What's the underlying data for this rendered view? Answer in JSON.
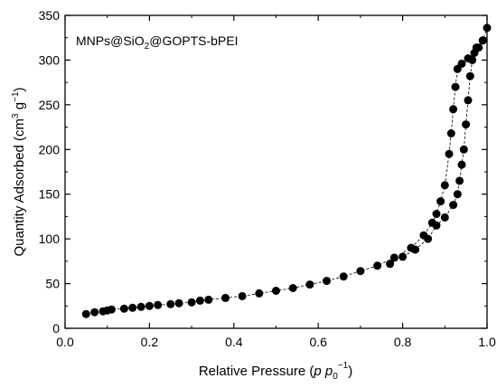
{
  "chart_data": {
    "type": "scatter",
    "title": "",
    "annotation": {
      "prefix": "MNPs@SiO",
      "sub1": "2",
      "suffix": "@GOPTS-bPEI"
    },
    "xlabel": {
      "text": "Relative Pressure (",
      "p": "p",
      "p0": "p",
      "p0_sub": "0",
      "sup": "−1",
      "close": ")"
    },
    "ylabel": {
      "text": "Quantity Adsorbed (cm",
      "sup1": "3",
      "mid": " g",
      "sup2": "−1",
      "close": ")"
    },
    "xlim": [
      0.0,
      1.0
    ],
    "ylim": [
      0,
      350
    ],
    "xticks": [
      0.0,
      0.2,
      0.4,
      0.6,
      0.8,
      1.0
    ],
    "xtick_labels": [
      "0.0",
      "0.2",
      "0.4",
      "0.6",
      "0.8",
      "1.0"
    ],
    "yticks": [
      0,
      50,
      100,
      150,
      200,
      250,
      300,
      350
    ],
    "ytick_labels": [
      "0",
      "50",
      "100",
      "150",
      "200",
      "250",
      "300",
      "350"
    ],
    "grid": false,
    "marker_color": "#000000",
    "series": [
      {
        "name": "",
        "points": [
          [
            0.05,
            16
          ],
          [
            0.07,
            18
          ],
          [
            0.09,
            19
          ],
          [
            0.1,
            20
          ],
          [
            0.11,
            21
          ],
          [
            0.14,
            22
          ],
          [
            0.16,
            23
          ],
          [
            0.18,
            24
          ],
          [
            0.2,
            25
          ],
          [
            0.22,
            26
          ],
          [
            0.25,
            27
          ],
          [
            0.27,
            28
          ],
          [
            0.3,
            29
          ],
          [
            0.32,
            31
          ],
          [
            0.34,
            32
          ],
          [
            0.38,
            34
          ],
          [
            0.42,
            36
          ],
          [
            0.46,
            39
          ],
          [
            0.5,
            42
          ],
          [
            0.54,
            45
          ],
          [
            0.58,
            49
          ],
          [
            0.62,
            53
          ],
          [
            0.66,
            58
          ],
          [
            0.7,
            64
          ],
          [
            0.74,
            70
          ],
          [
            0.78,
            79
          ],
          [
            0.82,
            90
          ],
          [
            0.85,
            104
          ],
          [
            0.87,
            118
          ],
          [
            0.88,
            128
          ],
          [
            0.89,
            142
          ],
          [
            0.9,
            160
          ],
          [
            0.91,
            195
          ],
          [
            0.915,
            218
          ],
          [
            0.92,
            245
          ],
          [
            0.925,
            270
          ],
          [
            0.93,
            290
          ],
          [
            0.94,
            296
          ],
          [
            0.955,
            302
          ],
          [
            0.97,
            308
          ],
          [
            0.98,
            314
          ],
          [
            0.99,
            322
          ],
          [
            1.0,
            336
          ]
        ]
      },
      {
        "name": "",
        "points": [
          [
            0.99,
            322
          ],
          [
            0.975,
            314
          ],
          [
            0.965,
            300
          ],
          [
            0.96,
            282
          ],
          [
            0.955,
            255
          ],
          [
            0.95,
            228
          ],
          [
            0.945,
            200
          ],
          [
            0.94,
            183
          ],
          [
            0.935,
            165
          ],
          [
            0.93,
            150
          ],
          [
            0.92,
            138
          ],
          [
            0.9,
            124
          ],
          [
            0.88,
            115
          ],
          [
            0.86,
            100
          ],
          [
            0.83,
            88
          ],
          [
            0.8,
            80
          ],
          [
            0.77,
            72
          ]
        ]
      }
    ]
  }
}
